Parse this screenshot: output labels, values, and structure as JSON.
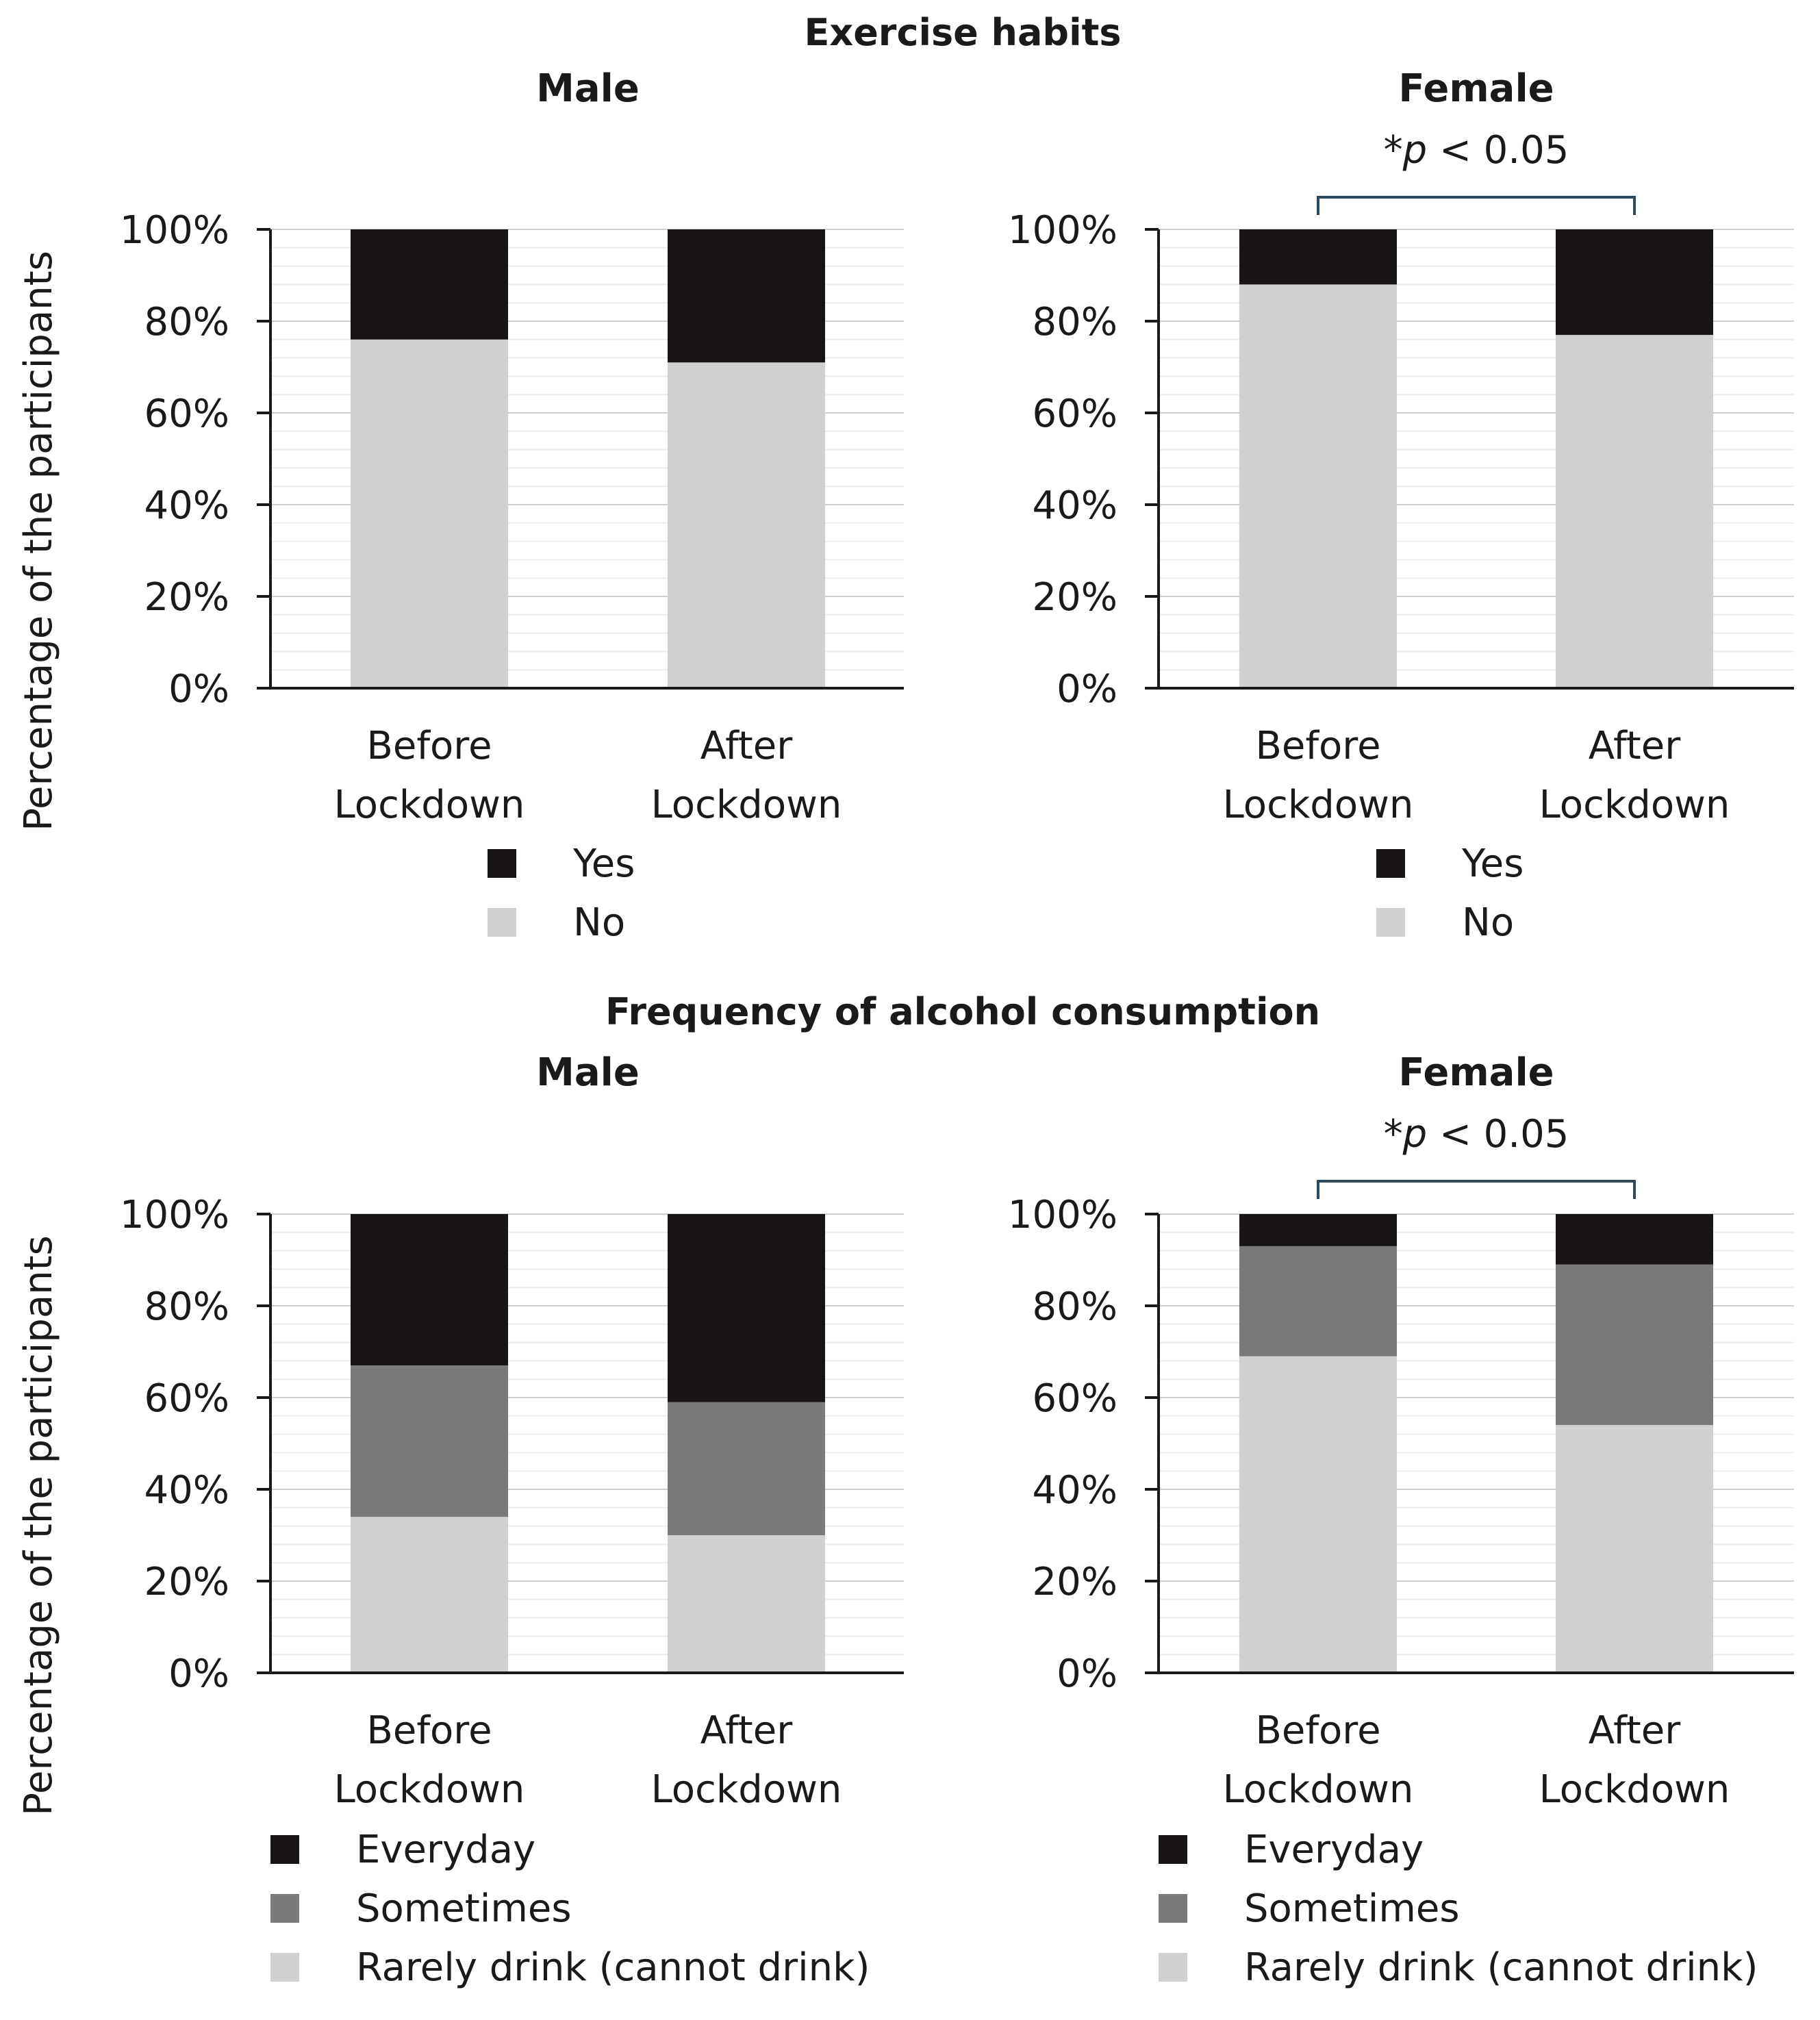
{
  "chart_data": [
    {
      "type": "bar",
      "stacked": true,
      "section_title": "Exercise habits",
      "title": "Male",
      "ylabel": "Percentage of the participants",
      "ylim": [
        0,
        100
      ],
      "yticks": [
        "0%",
        "20%",
        "40%",
        "60%",
        "80%",
        "100%"
      ],
      "categories": [
        [
          "Before",
          "Lockdown"
        ],
        [
          "After",
          "Lockdown"
        ]
      ],
      "series": [
        {
          "name": "No",
          "color": "#d0d0d0",
          "values": [
            76,
            71
          ]
        },
        {
          "name": "Yes",
          "color": "#181514",
          "values": [
            24,
            29
          ]
        }
      ],
      "legend": [
        {
          "name": "Yes",
          "color": "#181514"
        },
        {
          "name": "No",
          "color": "#d0d0d0"
        }
      ],
      "significance": null
    },
    {
      "type": "bar",
      "stacked": true,
      "section_title": "Exercise habits",
      "title": "Female",
      "ylabel": "",
      "ylim": [
        0,
        100
      ],
      "yticks": [
        "0%",
        "20%",
        "40%",
        "60%",
        "80%",
        "100%"
      ],
      "categories": [
        [
          "Before",
          "Lockdown"
        ],
        [
          "After",
          "Lockdown"
        ]
      ],
      "series": [
        {
          "name": "No",
          "color": "#d0d0d0",
          "values": [
            88,
            77
          ]
        },
        {
          "name": "Yes",
          "color": "#181514",
          "values": [
            12,
            23
          ]
        }
      ],
      "legend": [
        {
          "name": "Yes",
          "color": "#181514"
        },
        {
          "name": "No",
          "color": "#d0d0d0"
        }
      ],
      "significance": {
        "prefix": "*",
        "p": "p",
        "rest": " < 0.05"
      }
    },
    {
      "type": "bar",
      "stacked": true,
      "section_title": "Frequency of alcohol consumption",
      "title": "Male",
      "ylabel": "Percentage of the participants",
      "ylim": [
        0,
        100
      ],
      "yticks": [
        "0%",
        "20%",
        "40%",
        "60%",
        "80%",
        "100%"
      ],
      "categories": [
        [
          "Before",
          "Lockdown"
        ],
        [
          "After",
          "Lockdown"
        ]
      ],
      "series": [
        {
          "name": "Rarely drink (cannot drink)",
          "color": "#d0d0d0",
          "values": [
            34,
            30
          ]
        },
        {
          "name": "Sometimes",
          "color": "#7a7a7a",
          "values": [
            33,
            29
          ]
        },
        {
          "name": "Everyday",
          "color": "#181514",
          "values": [
            33,
            41
          ]
        }
      ],
      "legend": [
        {
          "name": "Everyday",
          "color": "#181514"
        },
        {
          "name": "Sometimes",
          "color": "#7a7a7a"
        },
        {
          "name": "Rarely drink (cannot drink)",
          "color": "#d0d0d0"
        }
      ],
      "significance": null
    },
    {
      "type": "bar",
      "stacked": true,
      "section_title": "Frequency of alcohol consumption",
      "title": "Female",
      "ylabel": "",
      "ylim": [
        0,
        100
      ],
      "yticks": [
        "0%",
        "20%",
        "40%",
        "60%",
        "80%",
        "100%"
      ],
      "categories": [
        [
          "Before",
          "Lockdown"
        ],
        [
          "After",
          "Lockdown"
        ]
      ],
      "series": [
        {
          "name": "Rarely drink (cannot drink)",
          "color": "#d0d0d0",
          "values": [
            69,
            54
          ]
        },
        {
          "name": "Sometimes",
          "color": "#7a7a7a",
          "values": [
            24,
            35
          ]
        },
        {
          "name": "Everyday",
          "color": "#181514",
          "values": [
            7,
            11
          ]
        }
      ],
      "legend": [
        {
          "name": "Everyday",
          "color": "#181514"
        },
        {
          "name": "Sometimes",
          "color": "#7a7a7a"
        },
        {
          "name": "Rarely drink (cannot drink)",
          "color": "#d0d0d0"
        }
      ],
      "significance": {
        "prefix": "*",
        "p": "p",
        "rest": " < 0.05"
      }
    }
  ]
}
